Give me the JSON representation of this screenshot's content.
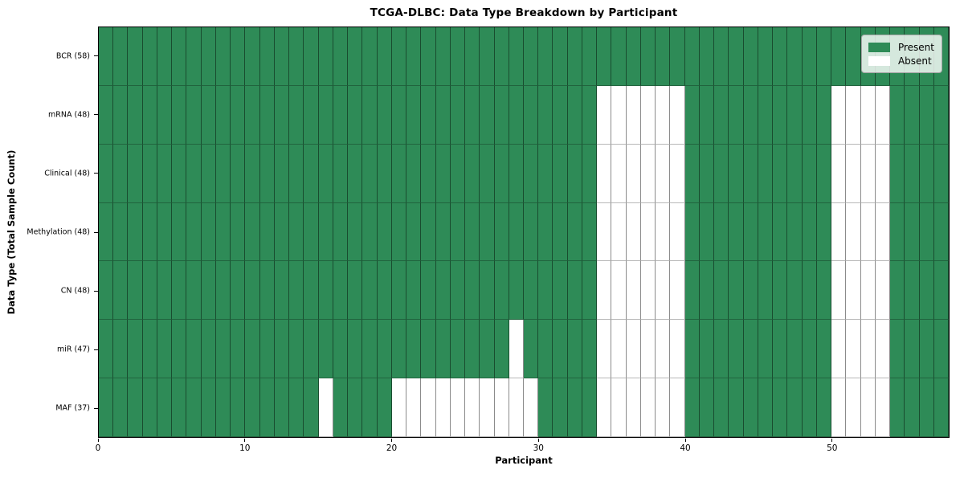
{
  "chart_data": {
    "type": "heatmap",
    "title": "TCGA-DLBC: Data Type Breakdown by Participant",
    "xlabel": "Participant",
    "ylabel": "Data Type (Total Sample Count)",
    "n_participants": 58,
    "xlim": [
      0,
      58
    ],
    "x_ticks": [
      0,
      10,
      20,
      30,
      40,
      50
    ],
    "grid": true,
    "legend_position": "upper right",
    "colors": {
      "present": "#2e8b57",
      "absent": "#ffffff",
      "grid_line": "rgba(0,0,0,0.45)",
      "spine": "#000000"
    },
    "legend": [
      {
        "label": "Present",
        "color": "#2e8b57"
      },
      {
        "label": "Absent",
        "color": "#ffffff"
      }
    ],
    "rows": [
      {
        "label": "BCR (58)",
        "data_type": "BCR",
        "total": 58,
        "absent_participants": []
      },
      {
        "label": "mRNA (48)",
        "data_type": "mRNA",
        "total": 48,
        "absent_participants": [
          34,
          35,
          36,
          37,
          38,
          39,
          50,
          51,
          52,
          53
        ]
      },
      {
        "label": "Clinical (48)",
        "data_type": "Clinical",
        "total": 48,
        "absent_participants": [
          34,
          35,
          36,
          37,
          38,
          39,
          50,
          51,
          52,
          53
        ]
      },
      {
        "label": "Methylation (48)",
        "data_type": "Methylation",
        "total": 48,
        "absent_participants": [
          34,
          35,
          36,
          37,
          38,
          39,
          50,
          51,
          52,
          53
        ]
      },
      {
        "label": "CN (48)",
        "data_type": "CN",
        "total": 48,
        "absent_participants": [
          34,
          35,
          36,
          37,
          38,
          39,
          50,
          51,
          52,
          53
        ]
      },
      {
        "label": "miR (47)",
        "data_type": "miR",
        "total": 47,
        "absent_participants": [
          28,
          34,
          35,
          36,
          37,
          38,
          39,
          50,
          51,
          52,
          53
        ]
      },
      {
        "label": "MAF (37)",
        "data_type": "MAF",
        "total": 37,
        "absent_participants": [
          15,
          20,
          21,
          22,
          23,
          24,
          25,
          26,
          27,
          28,
          29,
          34,
          35,
          36,
          37,
          38,
          39,
          50,
          51,
          52,
          53
        ]
      }
    ]
  }
}
